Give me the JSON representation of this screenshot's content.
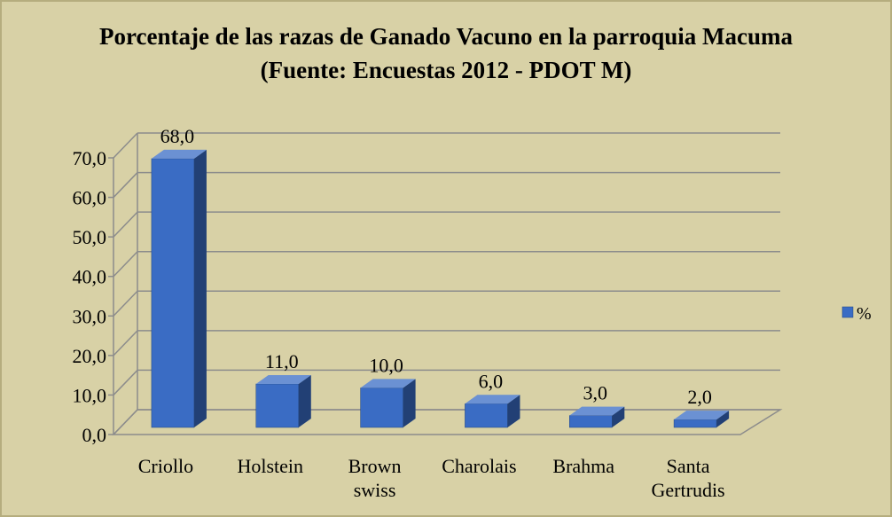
{
  "chart_data": {
    "type": "bar3d",
    "title": "Porcentaje de las razas de Ganado Vacuno en la parroquia Macuma (Fuente: Encuestas 2012 - PDOT M)",
    "categories": [
      "Criollo",
      "Holstein",
      "Brown swiss",
      "Charolais",
      "Brahma",
      "Santa Gertrudis"
    ],
    "series": [
      {
        "name": "%",
        "color": "#3a6cc4",
        "values": [
          68,
          11,
          10,
          6,
          3,
          2
        ],
        "value_labels": [
          "68,0",
          "11,0",
          "10,0",
          "6,0",
          "3,0",
          "2,0"
        ]
      }
    ],
    "ylim": [
      0,
      70
    ],
    "yticks": [
      {
        "value": 0,
        "label": "0,0"
      },
      {
        "value": 10,
        "label": "10,0"
      },
      {
        "value": 20,
        "label": "20,0"
      },
      {
        "value": 30,
        "label": "30,0"
      },
      {
        "value": 40,
        "label": "40,0"
      },
      {
        "value": 50,
        "label": "50,0"
      },
      {
        "value": 60,
        "label": "60,0"
      },
      {
        "value": 70,
        "label": "70,0"
      }
    ],
    "grid": true,
    "legend": "right"
  }
}
